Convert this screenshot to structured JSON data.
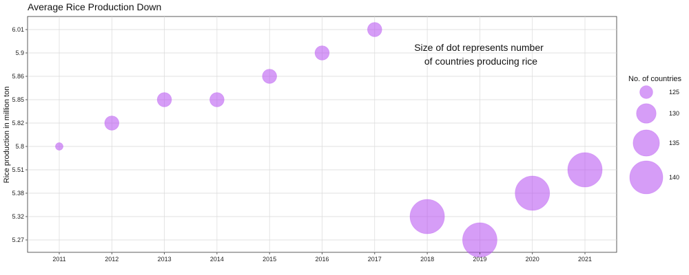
{
  "chart_data": {
    "type": "scatter",
    "title": "Average Rice Production Down",
    "xlabel": "",
    "ylabel": "Rice production in million ton",
    "y_axis_type": "categorical",
    "x": [
      "2011",
      "2012",
      "2013",
      "2014",
      "2015",
      "2016",
      "2017",
      "2018",
      "2019",
      "2020",
      "2021"
    ],
    "y": [
      "5.8",
      "5.82",
      "5.85",
      "5.85",
      "5.86",
      "5.9",
      "6.01",
      "5.32",
      "5.27",
      "5.38",
      "5.51"
    ],
    "size_values": [
      121,
      126,
      126,
      126,
      126,
      126,
      126,
      141,
      141,
      141,
      141
    ],
    "y_categories_top_to_bottom": [
      "6.01",
      "5.9",
      "5.86",
      "5.85",
      "5.82",
      "5.8",
      "5.51",
      "5.38",
      "5.32",
      "5.27"
    ],
    "annotation_lines": [
      "Size of dot represents number",
      "of countries producing rice"
    ],
    "legend": {
      "title": "No. of countries",
      "entries": [
        "125",
        "130",
        "135",
        "140"
      ],
      "position": "right"
    },
    "point_color": "#b44cf0",
    "grid": true
  }
}
